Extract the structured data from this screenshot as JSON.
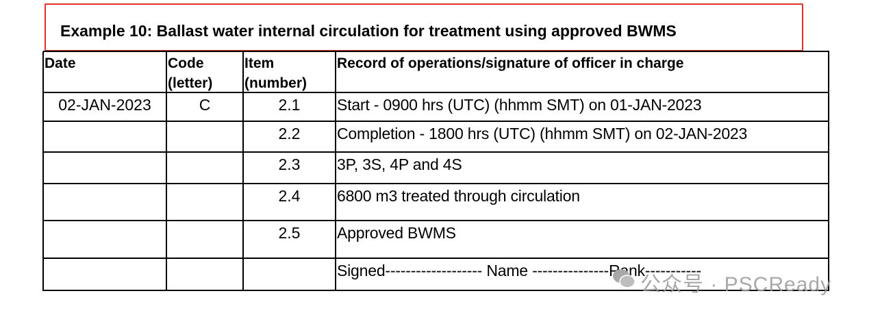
{
  "title": "Example 10:  Ballast water internal circulation for treatment using approved BWMS",
  "table": {
    "header": [
      "Date",
      "Code (letter)",
      "Item (number)",
      "Record of operations/signature of officer in charge"
    ],
    "rows": [
      {
        "date": "02-JAN-2023",
        "code": "C",
        "item": "2.1",
        "record": "Start - 0900 hrs (UTC) (hhmm SMT) on 01-JAN-2023"
      },
      {
        "item": "2.2",
        "record": "Completion - 1800 hrs (UTC) (hhmm SMT) on 02-JAN-2023"
      },
      {
        "item": "2.3",
        "record": "3P, 3S, 4P and 4S"
      },
      {
        "item": "2.4",
        "record": "6800 m3 treated through circulation"
      },
      {
        "item": "2.5",
        "record": "Approved BWMS"
      },
      {
        "record": "Signed------------------- Name ---------------Rank-----------"
      }
    ]
  },
  "watermark": "公众号 · PSCReady"
}
